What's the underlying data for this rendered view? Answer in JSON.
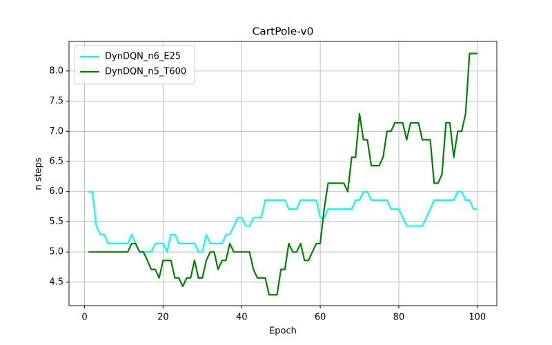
{
  "chart_data": {
    "type": "line",
    "title": "CartPole-v0",
    "x_label": "Epoch",
    "y_label": "n steps",
    "x": [
      1,
      2,
      3,
      4,
      5,
      6,
      7,
      8,
      9,
      10,
      11,
      12,
      13,
      14,
      15,
      16,
      17,
      18,
      19,
      20,
      21,
      22,
      23,
      24,
      25,
      26,
      27,
      28,
      29,
      30,
      31,
      32,
      33,
      34,
      35,
      36,
      37,
      38,
      39,
      40,
      41,
      42,
      43,
      44,
      45,
      46,
      47,
      48,
      49,
      50,
      51,
      52,
      53,
      54,
      55,
      56,
      57,
      58,
      59,
      60,
      61,
      62,
      63,
      64,
      65,
      66,
      67,
      68,
      69,
      70,
      71,
      72,
      73,
      74,
      75,
      76,
      77,
      78,
      79,
      80,
      81,
      82,
      83,
      84,
      85,
      86,
      87,
      88,
      89,
      90,
      91,
      92,
      93,
      94,
      95,
      96,
      97,
      98,
      99,
      100
    ],
    "series": [
      {
        "name": "DynDQN_n6_E25",
        "color": "#00ffff",
        "values": [
          6.0,
          6.0,
          5.43,
          5.29,
          5.29,
          5.14,
          5.14,
          5.14,
          5.14,
          5.14,
          5.14,
          5.29,
          5.14,
          5.0,
          5.0,
          5.0,
          5.0,
          5.14,
          5.14,
          5.14,
          5.0,
          5.29,
          5.29,
          5.14,
          5.14,
          5.14,
          5.14,
          5.14,
          5.0,
          5.0,
          5.29,
          5.14,
          5.14,
          5.14,
          5.14,
          5.29,
          5.29,
          5.43,
          5.57,
          5.57,
          5.43,
          5.43,
          5.57,
          5.57,
          5.57,
          5.86,
          5.86,
          5.86,
          5.86,
          5.86,
          5.86,
          5.71,
          5.71,
          5.71,
          5.86,
          5.86,
          5.86,
          5.86,
          5.86,
          5.57,
          5.57,
          5.71,
          5.71,
          5.71,
          5.71,
          5.71,
          5.71,
          5.71,
          5.86,
          5.86,
          6.0,
          6.0,
          5.86,
          5.86,
          5.86,
          5.86,
          5.86,
          5.71,
          5.71,
          5.71,
          5.57,
          5.43,
          5.43,
          5.43,
          5.43,
          5.43,
          5.57,
          5.71,
          5.86,
          5.86,
          5.86,
          5.86,
          5.86,
          5.86,
          6.0,
          6.0,
          5.86,
          5.86,
          5.71,
          5.71
        ]
      },
      {
        "name": "DynDQN_n5_T600",
        "color": "#008000",
        "values": [
          5.0,
          5.0,
          5.0,
          5.0,
          5.0,
          5.0,
          5.0,
          5.0,
          5.0,
          5.0,
          5.0,
          5.14,
          5.14,
          5.0,
          5.0,
          4.86,
          4.71,
          4.71,
          4.57,
          4.86,
          4.86,
          4.86,
          4.57,
          4.57,
          4.43,
          4.57,
          4.57,
          4.86,
          4.57,
          4.57,
          4.86,
          5.0,
          5.0,
          4.71,
          4.86,
          4.86,
          5.14,
          5.0,
          5.0,
          5.0,
          5.0,
          5.0,
          4.71,
          4.57,
          4.57,
          4.57,
          4.29,
          4.29,
          4.29,
          4.71,
          4.71,
          5.14,
          5.0,
          5.0,
          5.14,
          4.86,
          4.86,
          5.0,
          5.14,
          5.14,
          5.71,
          6.14,
          6.14,
          6.14,
          6.14,
          6.14,
          6.0,
          6.57,
          6.57,
          7.29,
          6.86,
          6.86,
          6.43,
          6.43,
          6.43,
          6.57,
          7.0,
          7.0,
          7.14,
          7.14,
          7.14,
          6.86,
          7.14,
          7.14,
          7.14,
          6.86,
          6.86,
          6.86,
          6.14,
          6.14,
          6.29,
          7.14,
          7.14,
          6.57,
          7.0,
          7.0,
          7.29,
          8.29,
          8.29,
          8.29
        ]
      }
    ],
    "xlim": [
      -3.95,
      104.95
    ],
    "ylim": [
      4.11,
      8.49
    ],
    "xticks": [
      0,
      20,
      40,
      60,
      80,
      100
    ],
    "yticks": [
      4.5,
      {
        "value": 5,
        "label": "5.0"
      },
      5.5,
      {
        "value": 6,
        "label": "6.0"
      },
      6.5,
      {
        "value": 7,
        "label": "7.0"
      },
      7.5,
      {
        "value": 8,
        "label": "8.0"
      }
    ],
    "grid": true,
    "legend": "upper left"
  }
}
